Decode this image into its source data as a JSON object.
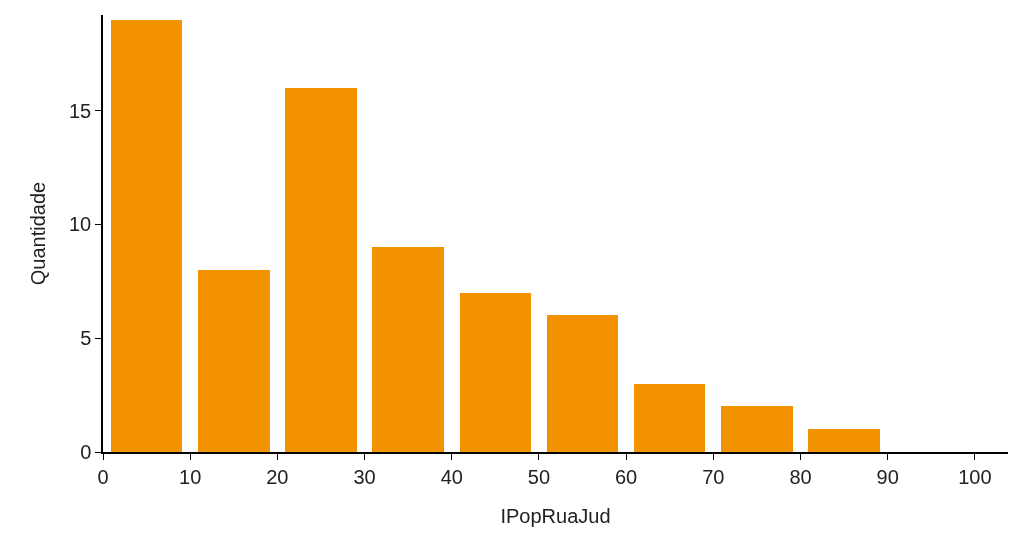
{
  "chart_data": {
    "type": "histogram",
    "xlabel": "IPopRuaJud",
    "ylabel": "Quantidade",
    "bins": [
      0,
      10,
      20,
      30,
      40,
      50,
      60,
      70,
      80,
      90,
      100
    ],
    "values": [
      19,
      8,
      16,
      9,
      7,
      6,
      3,
      2,
      1,
      0
    ],
    "color": "#f39200",
    "xlim": [
      0,
      103.8
    ],
    "xticks": [
      0,
      10,
      20,
      30,
      40,
      50,
      60,
      70,
      80,
      90,
      100
    ],
    "ylim": [
      0,
      19.2
    ],
    "yticks": [
      0,
      5,
      10,
      15
    ]
  }
}
